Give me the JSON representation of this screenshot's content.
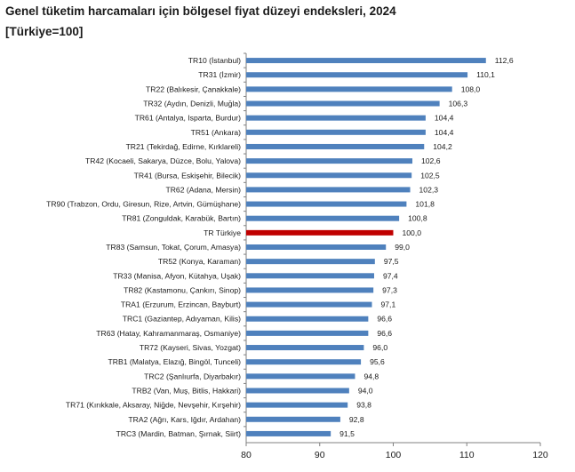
{
  "chart_data": {
    "type": "bar",
    "orientation": "horizontal",
    "title": "Genel tüketim harcamaları için bölgesel fiyat düzeyi endeksleri, 2024",
    "subtitle": "[Türkiye=100]",
    "categories": [
      "TR10 (İstanbul)",
      "TR31 (İzmir)",
      "TR22 (Balıkesir, Çanakkale)",
      "TR32 (Aydın, Denizli, Muğla)",
      "TR61 (Antalya, Isparta, Burdur)",
      "TR51 (Ankara)",
      "TR21 (Tekirdağ, Edirne, Kırklareli)",
      "TR42 (Kocaeli, Sakarya, Düzce, Bolu, Yalova)",
      "TR41 (Bursa, Eskişehir, Bilecik)",
      "TR62 (Adana, Mersin)",
      "TR90 (Trabzon, Ordu, Giresun, Rize, Artvin, Gümüşhane)",
      "TR81 (Zonguldak, Karabük, Bartın)",
      "TR Türkiye",
      "TR83 (Samsun, Tokat, Çorum, Amasya)",
      "TR52 (Konya, Karaman)",
      "TR33 (Manisa, Afyon, Kütahya, Uşak)",
      "TR82 (Kastamonu, Çankırı, Sinop)",
      "TRA1 (Erzurum, Erzincan, Bayburt)",
      "TRC1 (Gaziantep, Adıyaman, Kilis)",
      "TR63 (Hatay, Kahramanmaraş, Osmaniye)",
      "TR72 (Kayseri, Sivas, Yozgat)",
      "TRB1 (Malatya, Elazığ, Bingöl, Tunceli)",
      "TRC2 (Şanlıurfa, Diyarbakır)",
      "TRB2 (Van, Muş, Bitlis, Hakkari)",
      "TR71 (Kırıkkale, Aksaray, Niğde, Nevşehir, Kırşehir)",
      "TRA2 (Ağrı, Kars, Iğdır, Ardahan)",
      "TRC3 (Mardin, Batman, Şırnak, Siirt)"
    ],
    "values": [
      112.6,
      110.1,
      108.0,
      106.3,
      104.4,
      104.4,
      104.2,
      102.6,
      102.5,
      102.3,
      101.8,
      100.8,
      100.0,
      99.0,
      97.5,
      97.4,
      97.3,
      97.1,
      96.6,
      96.6,
      96.0,
      95.6,
      94.8,
      94.0,
      93.8,
      92.8,
      91.5
    ],
    "value_labels": [
      "112,6",
      "110,1",
      "108,0",
      "106,3",
      "104,4",
      "104,4",
      "104,2",
      "102,6",
      "102,5",
      "102,3",
      "101,8",
      "100,8",
      "100,0",
      "99,0",
      "97,5",
      "97,4",
      "97,3",
      "97,1",
      "96,6",
      "96,6",
      "96,0",
      "95,6",
      "94,8",
      "94,0",
      "93,8",
      "92,8",
      "91,5"
    ],
    "highlight_category": "TR Türkiye",
    "colors": {
      "bar": "#4f81bd",
      "highlight": "#c00000"
    },
    "xlim": [
      80,
      120
    ],
    "xticks": [
      80,
      90,
      100,
      110,
      120
    ],
    "grid": false,
    "legend": "none"
  }
}
